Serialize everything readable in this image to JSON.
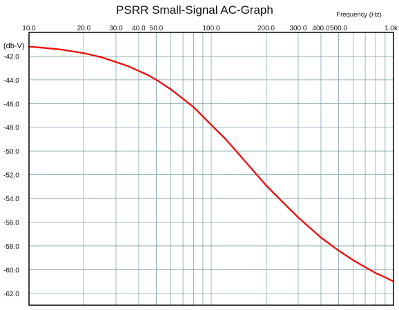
{
  "chart_data": {
    "type": "line",
    "title": "PSRR Small-Signal AC-Graph",
    "xlabel": "Frequency  (Hz)",
    "ylabel": "(db-V)",
    "x_scale": "log",
    "xlim": [
      10,
      1000
    ],
    "ylim": [
      -63,
      -40
    ],
    "grid": true,
    "x_ticks": [
      {
        "value": 10,
        "label": "10.0"
      },
      {
        "value": 20,
        "label": "20.0"
      },
      {
        "value": 30,
        "label": "30.0"
      },
      {
        "value": 40,
        "label": "40.0"
      },
      {
        "value": 50,
        "label": "50.0"
      },
      {
        "value": 100,
        "label": "100.0"
      },
      {
        "value": 200,
        "label": "200.0"
      },
      {
        "value": 300,
        "label": "300.0"
      },
      {
        "value": 400,
        "label": "400.0"
      },
      {
        "value": 500,
        "label": "500.0"
      },
      {
        "value": 1000,
        "label": "1.0k"
      }
    ],
    "x_minor_grid": [
      60,
      70,
      80,
      90,
      600,
      700,
      800,
      900
    ],
    "y_ticks": [
      {
        "value": -42,
        "label": "-42.0"
      },
      {
        "value": -44,
        "label": "-44.0"
      },
      {
        "value": -46,
        "label": "-46.0"
      },
      {
        "value": -48,
        "label": "-48.0"
      },
      {
        "value": -50,
        "label": "-50.0"
      },
      {
        "value": -52,
        "label": "-52.0"
      },
      {
        "value": -54,
        "label": "-54.0"
      },
      {
        "value": -56,
        "label": "-56.0"
      },
      {
        "value": -58,
        "label": "-58.0"
      },
      {
        "value": -60,
        "label": "-60.0"
      },
      {
        "value": -62,
        "label": "-62.0"
      }
    ],
    "series": [
      {
        "color": "#ee1111",
        "x": [
          10,
          12,
          15,
          20,
          25,
          30,
          35,
          40,
          45,
          50,
          60,
          70,
          80,
          100,
          120,
          150,
          200,
          250,
          300,
          400,
          500,
          600,
          700,
          800,
          900,
          1000
        ],
        "y": [
          -41.2,
          -41.3,
          -41.45,
          -41.75,
          -42.1,
          -42.5,
          -42.85,
          -43.25,
          -43.6,
          -44.0,
          -44.8,
          -45.6,
          -46.3,
          -47.8,
          -49.0,
          -50.7,
          -52.9,
          -54.4,
          -55.6,
          -57.3,
          -58.4,
          -59.2,
          -59.8,
          -60.3,
          -60.65,
          -61.0
        ]
      }
    ]
  }
}
